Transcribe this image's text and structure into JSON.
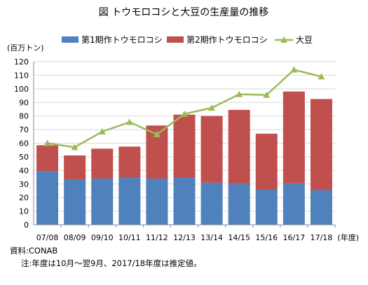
{
  "chart_data": {
    "type": "bar",
    "title": "図 トウモロコシと大豆の生産量の推移",
    "ylabel": "(百万トン)",
    "xunit": "(年度)",
    "ylim": [
      0,
      120
    ],
    "yticks": [
      0,
      10,
      20,
      30,
      40,
      50,
      60,
      70,
      80,
      90,
      100,
      110,
      120
    ],
    "categories": [
      "07/08",
      "08/09",
      "09/10",
      "10/11",
      "11/12",
      "12/13",
      "13/14",
      "14/15",
      "15/16",
      "16/17",
      "17/18"
    ],
    "series": [
      {
        "name": "第1期作トウモロコシ",
        "kind": "bar",
        "stack": "corn",
        "color": "#4f81bd",
        "values": [
          39.5,
          33.5,
          34,
          35,
          34,
          34.5,
          31,
          30,
          26,
          30.5,
          25.5
        ]
      },
      {
        "name": "第2期作トウモロコシ",
        "kind": "bar",
        "stack": "corn",
        "color": "#c0504d",
        "values": [
          19,
          17.5,
          22,
          22.5,
          39,
          46.5,
          49,
          54.5,
          41,
          67.5,
          67
        ]
      },
      {
        "name": "大豆",
        "kind": "line",
        "color": "#9bbb59",
        "values": [
          60,
          57,
          68.5,
          75.5,
          66.5,
          81.5,
          86,
          96,
          95.5,
          114,
          109
        ]
      }
    ],
    "grid": true,
    "legend": "top"
  },
  "notes": {
    "source": "資料:CONAB",
    "note": "注:年度は10月～翌9月、2017/18年度は推定値。"
  }
}
